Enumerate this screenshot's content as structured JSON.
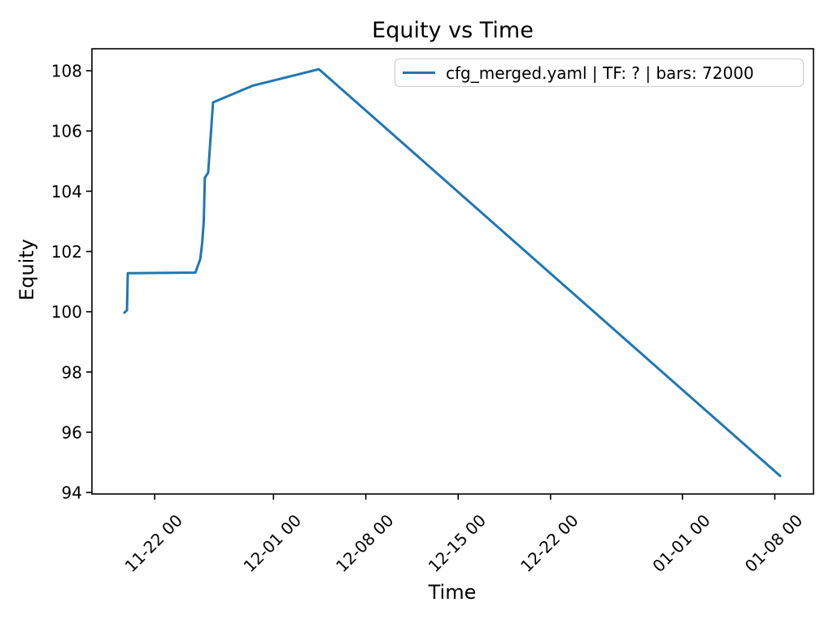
{
  "figure": {
    "title": "Equity vs Time",
    "xlabel": "Time",
    "ylabel": "Equity"
  },
  "legend": {
    "entry": "cfg_merged.yaml | TF: ? | bars: 72000"
  },
  "chart_data": {
    "type": "line",
    "title": "Equity vs Time",
    "xlabel": "Time",
    "ylabel": "Equity",
    "background": "#ffffff",
    "grid": false,
    "legend_position": "upper right",
    "x_unit": "days relative to 11-22 00:00",
    "xlim": [
      -4.76,
      49.93
    ],
    "ylim": [
      93.95,
      108.73
    ],
    "x_ticks": [
      {
        "pos": 0,
        "label": "11-22 00"
      },
      {
        "pos": 9,
        "label": "12-01 00"
      },
      {
        "pos": 16,
        "label": "12-08 00"
      },
      {
        "pos": 23,
        "label": "12-15 00"
      },
      {
        "pos": 30,
        "label": "12-22 00"
      },
      {
        "pos": 40,
        "label": "01-01 00"
      },
      {
        "pos": 47,
        "label": "01-08 00"
      }
    ],
    "y_ticks": [
      {
        "pos": 94,
        "label": "94"
      },
      {
        "pos": 96,
        "label": "96"
      },
      {
        "pos": 98,
        "label": "98"
      },
      {
        "pos": 100,
        "label": "100"
      },
      {
        "pos": 102,
        "label": "102"
      },
      {
        "pos": 104,
        "label": "104"
      },
      {
        "pos": 106,
        "label": "106"
      },
      {
        "pos": 108,
        "label": "108"
      }
    ],
    "series": [
      {
        "name": "cfg_merged.yaml | TF: ? | bars: 72000",
        "color": "#1f77b4",
        "line_width": 3,
        "points": [
          [
            -2.3,
            99.97
          ],
          [
            -2.1,
            100.05
          ],
          [
            -2.04,
            101.28
          ],
          [
            3.08,
            101.3
          ],
          [
            3.45,
            101.75
          ],
          [
            3.6,
            102.3
          ],
          [
            3.72,
            103.0
          ],
          [
            3.8,
            104.45
          ],
          [
            4.05,
            104.62
          ],
          [
            4.42,
            106.95
          ],
          [
            7.4,
            107.5
          ],
          [
            12.45,
            108.05
          ],
          [
            47.4,
            94.55
          ]
        ]
      }
    ]
  }
}
